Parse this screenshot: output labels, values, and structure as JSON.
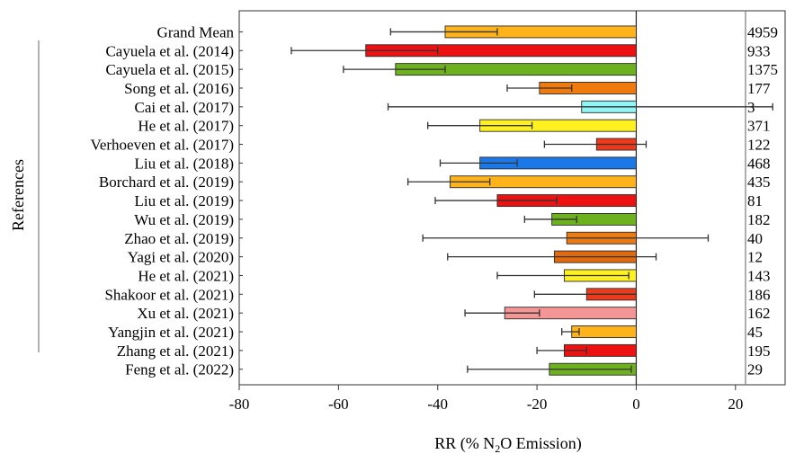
{
  "chart_data": {
    "type": "bar",
    "orientation": "horizontal",
    "ylabel": "References",
    "xlabel": {
      "prefix": "RR (% N",
      "subscript": "2",
      "suffix": "O Emission)"
    },
    "xlim": [
      -80,
      30
    ],
    "xticks": [
      -80,
      -60,
      -40,
      -20,
      0,
      20
    ],
    "categories": [
      "Grand Mean",
      "Cayuela et al. (2014)",
      "Cayuela et al. (2015)",
      "Song et al. (2016)",
      "Cai et al. (2017)",
      "He et al. (2017)",
      "Verhoeven et al. (2017)",
      "Liu et al. (2018)",
      "Borchard et al. (2019)",
      "Liu et al. (2019)",
      "Wu et al. (2019)",
      "Zhao et al. (2019)",
      "Yagi et al. (2020)",
      "He et al. (2021)",
      "Shakoor et al. (2021)",
      "Xu et al. (2021)",
      "Yangjin et al. (2021)",
      "Zhang et al. (2021)",
      "Feng et al. (2022)"
    ],
    "values": [
      -38.5,
      -54.5,
      -48.5,
      -19.5,
      -11,
      -31.5,
      -8,
      -31.5,
      -37.5,
      -28,
      -17,
      -14,
      -16.5,
      -14.5,
      -10,
      -26.5,
      -13,
      -14.5,
      -17.5
    ],
    "ci_low": [
      -49.5,
      -69.5,
      -59,
      -26,
      -50,
      -42,
      -18.5,
      -39.5,
      -46,
      -40.5,
      -22.5,
      -43,
      -38,
      -28,
      -20.5,
      -34.5,
      -15,
      -20,
      -34
    ],
    "ci_high": [
      -28,
      -40,
      -38.5,
      -13,
      27.5,
      -21,
      2,
      -24,
      -29.5,
      -16,
      -12,
      14.5,
      4,
      -1.5,
      0,
      -19.5,
      -11.5,
      -10,
      -1
    ],
    "n": [
      "4959",
      "933",
      "1375",
      "177",
      "3",
      "371",
      "122",
      "468",
      "435",
      "81",
      "182",
      "40",
      "12",
      "143",
      "186",
      "162",
      "45",
      "195",
      "29"
    ],
    "colors": [
      "#FFB31A",
      "#EE1111",
      "#6DB11F",
      "#F07A0E",
      "#8FF5F5",
      "#FFF020",
      "#EE3A1A",
      "#1A78E8",
      "#FFB31A",
      "#EE1111",
      "#6DB11F",
      "#EC7A12",
      "#E26A0E",
      "#FFF020",
      "#EE3A1A",
      "#F59696",
      "#FFB31A",
      "#EE1111",
      "#6DB11F"
    ],
    "grid": false
  }
}
